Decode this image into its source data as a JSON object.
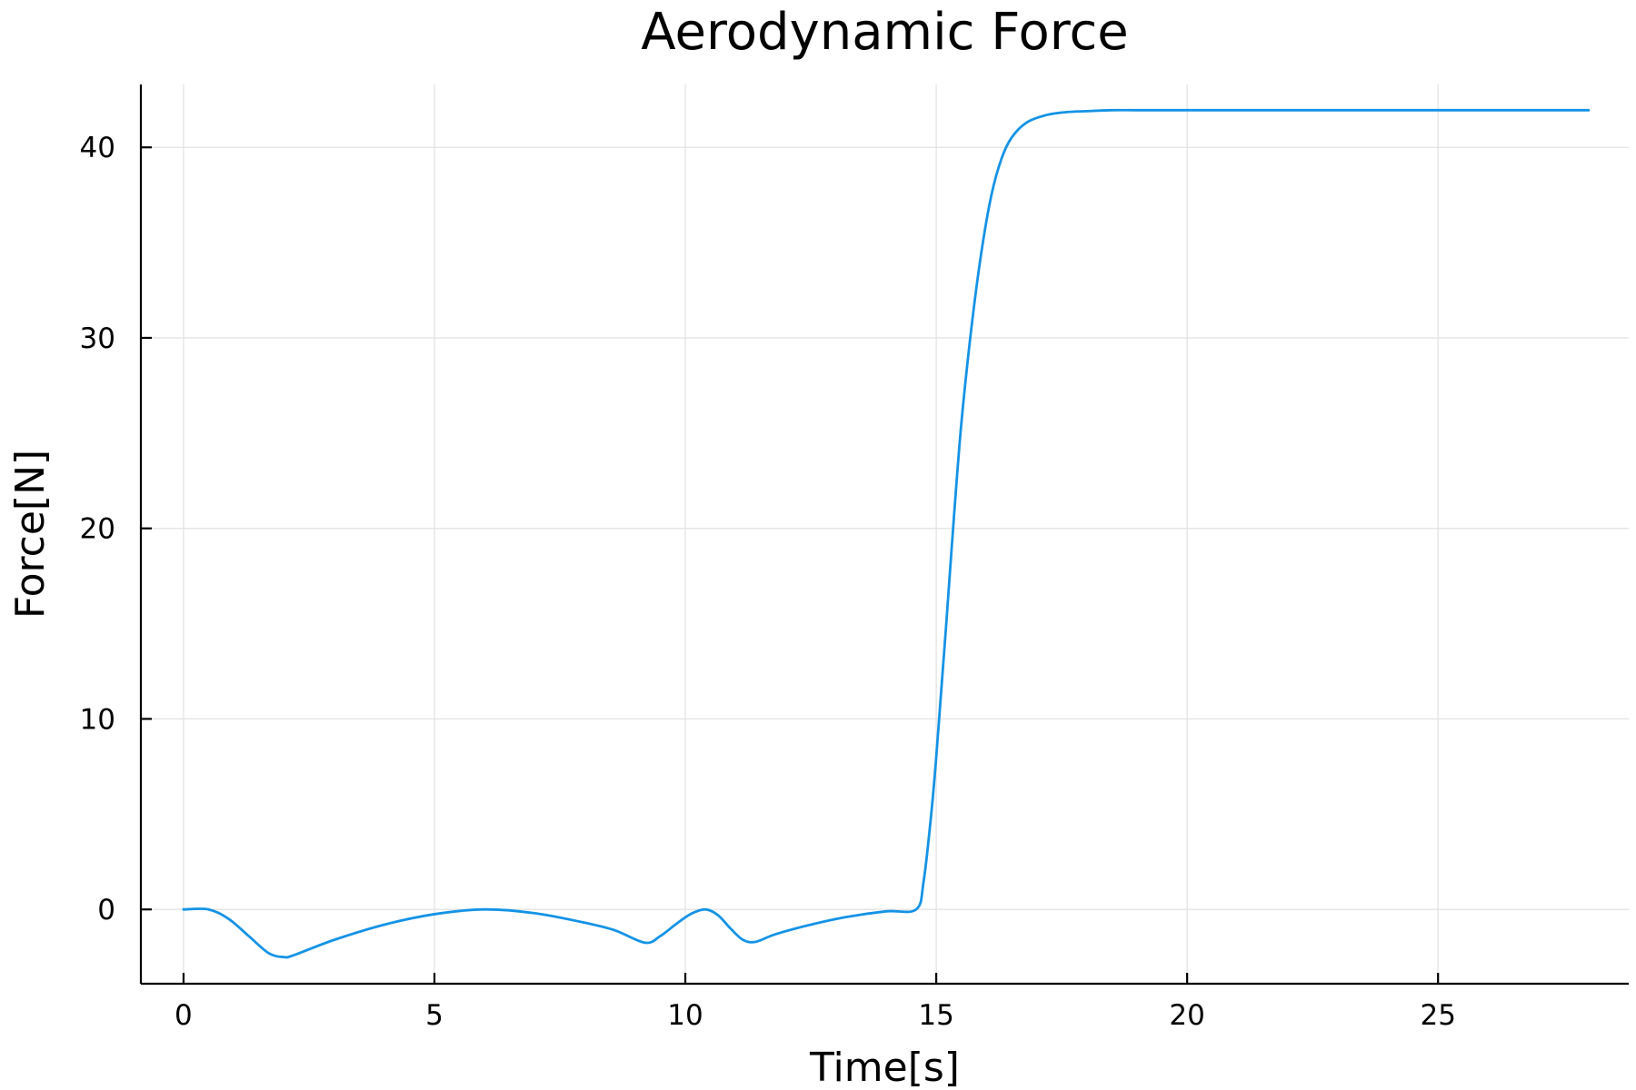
{
  "chart_data": {
    "type": "line",
    "title": "Aerodynamic Force",
    "xlabel": "Time[s]",
    "ylabel": "Force[N]",
    "xlim": [
      -0.85,
      28.8
    ],
    "ylim": [
      -3.9,
      43.3
    ],
    "xticks": [
      0,
      5,
      10,
      15,
      20,
      25
    ],
    "yticks": [
      0,
      10,
      20,
      30,
      40
    ],
    "grid": true,
    "legend": "none",
    "series": [
      {
        "color": "#1593e6",
        "x": [
          0.0,
          0.5,
          0.9,
          1.3,
          1.7,
          2.0,
          2.2,
          3.0,
          4.0,
          5.0,
          6.0,
          7.0,
          8.0,
          8.6,
          9.2,
          9.5,
          9.8,
          10.1,
          10.4,
          10.65,
          10.9,
          11.15,
          11.4,
          11.8,
          12.5,
          13.2,
          14.0,
          14.6,
          14.75,
          14.9,
          15.0,
          15.1,
          15.2,
          15.35,
          15.5,
          15.7,
          15.9,
          16.1,
          16.3,
          16.5,
          16.8,
          17.2,
          17.6,
          18.0,
          18.5,
          19.0,
          20.0,
          22.0,
          25.0,
          28.0
        ],
        "y": [
          0.0,
          0.0,
          -0.5,
          -1.4,
          -2.3,
          -2.5,
          -2.4,
          -1.6,
          -0.8,
          -0.25,
          0.0,
          -0.2,
          -0.7,
          -1.1,
          -1.75,
          -1.4,
          -0.8,
          -0.25,
          0.0,
          -0.3,
          -1.0,
          -1.6,
          -1.7,
          -1.3,
          -0.8,
          -0.4,
          -0.1,
          0.0,
          1.5,
          5.0,
          8.0,
          11.5,
          15.0,
          20.5,
          25.5,
          30.5,
          34.5,
          37.5,
          39.4,
          40.5,
          41.3,
          41.7,
          41.85,
          41.9,
          41.95,
          41.95,
          41.95,
          41.95,
          41.95,
          41.95
        ]
      }
    ]
  }
}
